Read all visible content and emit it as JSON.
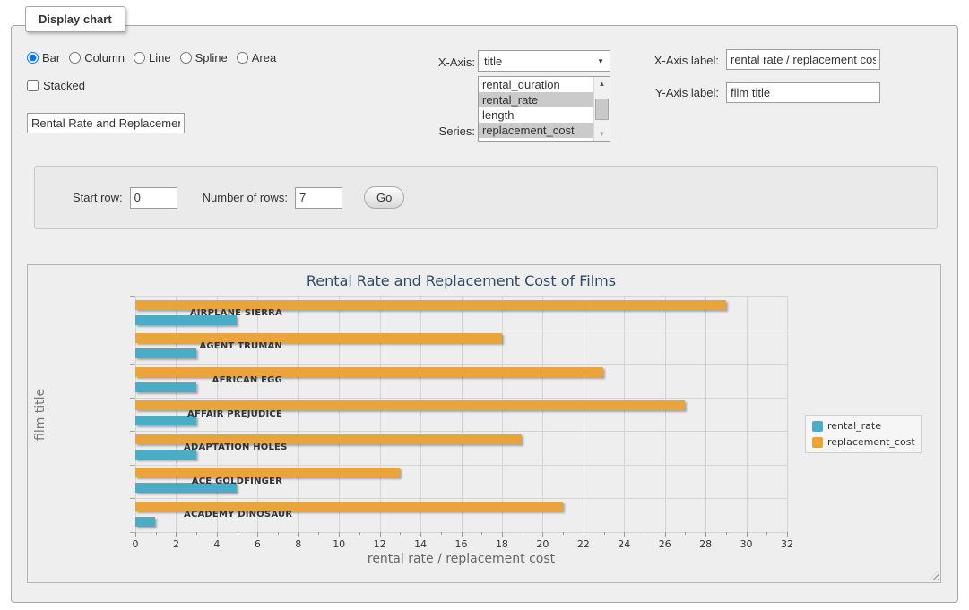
{
  "panel": {
    "legend": "Display chart"
  },
  "chart_type": {
    "options": [
      {
        "label": "Bar",
        "selected": true
      },
      {
        "label": "Column",
        "selected": false
      },
      {
        "label": "Line",
        "selected": false
      },
      {
        "label": "Spline",
        "selected": false
      },
      {
        "label": "Area",
        "selected": false
      }
    ]
  },
  "stacked": {
    "label": "Stacked",
    "checked": false
  },
  "chart_title_input": {
    "value": "Rental Rate and Replacement Cost of Films"
  },
  "x_axis_select": {
    "label": "X-Axis:",
    "value": "title",
    "arrow": "▼"
  },
  "series_select": {
    "label": "Series:",
    "options": [
      {
        "label": "rental_duration",
        "selected": false
      },
      {
        "label": "rental_rate",
        "selected": true
      },
      {
        "label": "length",
        "selected": false
      },
      {
        "label": "replacement_cost",
        "selected": true
      }
    ],
    "scroll_up_glyph": "▲",
    "scroll_down_glyph": "▼"
  },
  "x_axis_label": {
    "label": "X-Axis label:",
    "value": "rental rate / replacement cost"
  },
  "y_axis_label": {
    "label": "Y-Axis label:",
    "value": "film title"
  },
  "row_controls": {
    "start_row_label": "Start row:",
    "start_row_value": "0",
    "number_of_rows_label": "Number of rows:",
    "number_of_rows_value": "7",
    "go_label": "Go"
  },
  "chart_data": {
    "type": "bar",
    "title": "Rental Rate and Replacement Cost of Films",
    "categories": [
      "AIRPLANE SIERRA",
      "AGENT TRUMAN",
      "AFRICAN EGG",
      "AFFAIR PREJUDICE",
      "ADAPTATION HOLES",
      "ACE GOLDFINGER",
      "ACADEMY DINOSAUR"
    ],
    "series": [
      {
        "name": "rental_rate",
        "color": "#4BACC6",
        "values": [
          4.99,
          2.99,
          2.99,
          2.99,
          2.99,
          4.99,
          0.99
        ]
      },
      {
        "name": "replacement_cost",
        "color": "#E9A43C",
        "values": [
          28.99,
          17.99,
          22.99,
          26.99,
          18.99,
          12.99,
          20.99
        ]
      }
    ],
    "bar_order_top_to_bottom": [
      "replacement_cost",
      "rental_rate"
    ],
    "xlabel": "rental rate / replacement cost",
    "ylabel": "film title",
    "xlim": [
      0,
      32
    ],
    "x_tick_interval": 2,
    "x_minor_tick_interval": 1,
    "grid": true,
    "legend_position": "right"
  }
}
